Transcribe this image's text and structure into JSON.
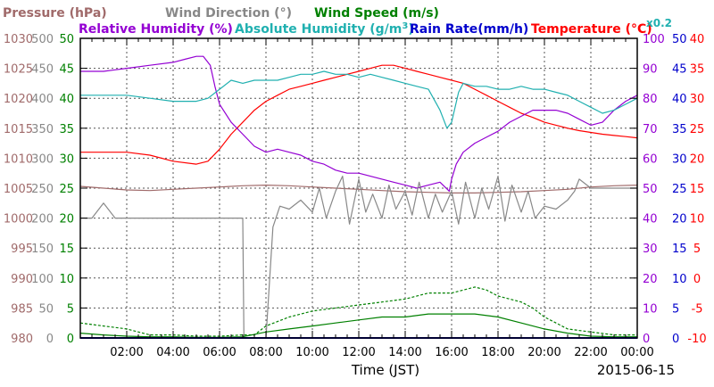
{
  "chart_data": {
    "type": "line",
    "date": "2015-06-15",
    "xlabel": "Time (JST)",
    "x_range_hours": [
      0,
      24
    ],
    "x_ticks": [
      "02:00",
      "04:00",
      "06:00",
      "08:00",
      "10:00",
      "12:00",
      "14:00",
      "16:00",
      "18:00",
      "20:00",
      "22:00",
      "00:00"
    ],
    "grid": true,
    "legend_rows": [
      [
        {
          "key": "pressure",
          "prefix": "Pressure (hPa)",
          "sup": "",
          "suffix": ""
        },
        {
          "key": "wind_direction",
          "prefix": "Wind Direction (°)",
          "sup": "",
          "suffix": ""
        },
        {
          "key": "wind_speed",
          "prefix": "Wind Speed (m/s)",
          "sup": "",
          "suffix": ""
        }
      ],
      [
        {
          "key": "relative_humidity",
          "prefix": "Relative Humidity (%)",
          "sup": "",
          "suffix": ""
        },
        {
          "key": "absolute_humidity",
          "prefix": "Absolute Humidity (g/m",
          "sup": "3",
          "suffix": ")"
        },
        {
          "key": "rain_rate",
          "prefix": "Rain Rate(mm/h)",
          "sup": "",
          "suffix": ""
        },
        {
          "key": "temperature",
          "prefix": "Temperature (°C)",
          "sup": "",
          "suffix": ""
        },
        {
          "key": "abs_scale",
          "prefix": "x0.2",
          "sup": "",
          "suffix": ""
        }
      ]
    ],
    "axes": [
      {
        "key": "pressure",
        "side": "left",
        "ticks": [
          980,
          985,
          990,
          995,
          1000,
          1005,
          1010,
          1015,
          1020,
          1025,
          1030
        ],
        "min": 980,
        "max": 1030
      },
      {
        "key": "wind_direction",
        "side": "left",
        "ticks": [
          0,
          50,
          100,
          150,
          200,
          250,
          300,
          350,
          400,
          450,
          500
        ],
        "min": 0,
        "max": 500
      },
      {
        "key": "wind_speed",
        "side": "left",
        "ticks": [
          0,
          5,
          10,
          15,
          20,
          25,
          30,
          35,
          40,
          45,
          50
        ],
        "min": 0,
        "max": 50
      },
      {
        "key": "relative_humidity",
        "side": "right",
        "ticks": [
          0,
          10,
          20,
          30,
          40,
          50,
          60,
          70,
          80,
          90,
          100
        ],
        "min": 0,
        "max": 100
      },
      {
        "key": "rain_rate",
        "side": "right",
        "ticks": [
          0,
          5,
          10,
          15,
          20,
          25,
          30,
          35,
          40,
          45,
          50
        ],
        "min": 0,
        "max": 50
      },
      {
        "key": "temperature",
        "side": "right",
        "ticks": [
          -10,
          -5,
          0,
          5,
          10,
          15,
          20,
          25,
          30,
          35,
          40
        ],
        "min": -10,
        "max": 40
      }
    ],
    "colors": {
      "pressure": "#a06a6a",
      "wind_direction": "#888888",
      "wind_speed": "#008000",
      "relative_humidity": "#9400d3",
      "absolute_humidity": "#20b0b0",
      "rain_rate": "#0000cc",
      "temperature": "#ff0000",
      "abs_scale": "#20b0b0"
    },
    "series": [
      {
        "key": "temperature",
        "axis": "temperature",
        "style": "solid",
        "x": [
          0,
          1,
          2,
          3,
          4,
          5,
          5.5,
          6,
          6.5,
          7,
          7.5,
          8,
          8.5,
          9,
          9.5,
          10,
          10.5,
          11,
          11.5,
          12,
          12.5,
          13,
          13.5,
          14,
          14.5,
          15,
          15.5,
          16,
          16.5,
          17,
          17.5,
          18,
          18.5,
          19,
          19.5,
          20,
          20.5,
          21,
          21.5,
          22,
          22.5,
          23,
          23.5,
          24
        ],
        "y": [
          21,
          21,
          21,
          20.5,
          19.5,
          19,
          19.5,
          21.5,
          24,
          26,
          28,
          29.5,
          30.5,
          31.5,
          32,
          32.5,
          33,
          33.5,
          34,
          34.5,
          35,
          35.5,
          35.5,
          35,
          34.5,
          34,
          33.5,
          33,
          32.5,
          31.5,
          30.5,
          29.5,
          28.5,
          27.5,
          26.8,
          26,
          25.5,
          25,
          24.6,
          24.3,
          24,
          23.8,
          23.6,
          23.4
        ]
      },
      {
        "key": "relative_humidity",
        "axis": "relative_humidity",
        "style": "solid",
        "x": [
          0,
          1,
          2,
          3,
          4,
          4.5,
          5,
          5.3,
          5.6,
          5.8,
          6,
          6.5,
          7,
          7.5,
          8,
          8.5,
          9,
          9.5,
          10,
          10.5,
          11,
          11.5,
          12,
          12.5,
          13,
          13.5,
          14,
          14.5,
          15,
          15.5,
          15.9,
          16,
          16.2,
          16.5,
          17,
          17.5,
          18,
          18.5,
          19,
          19.5,
          20,
          20.5,
          21,
          21.5,
          22,
          22.5,
          23,
          23.5,
          24
        ],
        "y": [
          89,
          89,
          90,
          91,
          92,
          93,
          94,
          94,
          91,
          84,
          78,
          72,
          68,
          64,
          62,
          63,
          62,
          61,
          59,
          58,
          56,
          55,
          55,
          54,
          53,
          52,
          51,
          50,
          51,
          52,
          49,
          53,
          58,
          62,
          65,
          67,
          69,
          72,
          74,
          76,
          76,
          76,
          75,
          73,
          71,
          72,
          76,
          79,
          81
        ]
      },
      {
        "key": "absolute_humidity",
        "axis": "relative_humidity",
        "style": "solid",
        "x": [
          0,
          1,
          2,
          3,
          4,
          4.5,
          5,
          5.5,
          6,
          6.5,
          7,
          7.5,
          8,
          8.5,
          9,
          9.5,
          10,
          10.5,
          11,
          11.5,
          12,
          12.5,
          13,
          13.5,
          14,
          14.5,
          15,
          15.5,
          15.8,
          16,
          16.3,
          16.5,
          17,
          17.5,
          18,
          18.5,
          19,
          19.5,
          20,
          20.5,
          21,
          21.5,
          22,
          22.5,
          23,
          23.5,
          24
        ],
        "y": [
          81,
          81,
          81,
          80,
          79,
          79,
          79,
          80,
          83,
          86,
          85,
          86,
          86,
          86,
          87,
          88,
          88,
          89,
          88,
          88,
          87,
          88,
          87,
          86,
          85,
          84,
          83,
          76,
          70,
          72,
          82,
          85,
          84,
          84,
          83,
          83,
          84,
          83,
          83,
          82,
          81,
          79,
          77,
          75,
          76,
          78,
          80
        ]
      },
      {
        "key": "pressure",
        "axis": "pressure",
        "style": "solid",
        "x": [
          0,
          1,
          2,
          3,
          4,
          5,
          6,
          7,
          8,
          9,
          10,
          11,
          12,
          13,
          14,
          15,
          16,
          17,
          18,
          19,
          20,
          21,
          22,
          23,
          24
        ],
        "y": [
          1005.3,
          1005,
          1004.7,
          1004.6,
          1004.8,
          1005,
          1005.2,
          1005.4,
          1005.5,
          1005.4,
          1005.2,
          1005,
          1004.8,
          1004.6,
          1004.4,
          1004.3,
          1004.2,
          1004.2,
          1004.3,
          1004.4,
          1004.6,
          1004.8,
          1005.2,
          1005.4,
          1005.5
        ]
      },
      {
        "key": "wind_direction",
        "axis": "wind_direction",
        "style": "solid",
        "x": [
          0,
          0.5,
          1,
          1.5,
          2,
          3,
          4,
          5,
          6,
          7,
          7.05,
          7.5,
          8,
          8.3,
          8.6,
          9,
          9.5,
          10,
          10.3,
          10.6,
          11,
          11.3,
          11.6,
          12,
          12.3,
          12.6,
          13,
          13.3,
          13.6,
          14,
          14.3,
          14.6,
          15,
          15.3,
          15.6,
          16,
          16.3,
          16.6,
          17,
          17.3,
          17.6,
          18,
          18.3,
          18.6,
          19,
          19.3,
          19.6,
          20,
          20.5,
          21,
          21.3,
          21.5,
          22,
          23,
          24
        ],
        "y": [
          200,
          200,
          225,
          200,
          200,
          200,
          200,
          200,
          200,
          200,
          0,
          0,
          0,
          185,
          220,
          215,
          230,
          210,
          250,
          200,
          245,
          270,
          190,
          265,
          210,
          240,
          200,
          255,
          215,
          245,
          205,
          260,
          200,
          240,
          210,
          245,
          190,
          260,
          200,
          250,
          215,
          270,
          195,
          255,
          210,
          245,
          200,
          220,
          215,
          230,
          245,
          265,
          250,
          250,
          250
        ]
      },
      {
        "key": "wind_speed_gust",
        "axis": "wind_speed",
        "style": "dashed",
        "x": [
          0,
          1,
          2,
          3,
          4,
          5,
          6,
          7,
          7.5,
          8,
          9,
          10,
          11,
          12,
          13,
          14,
          15,
          16,
          17,
          17.5,
          18,
          19,
          19.5,
          20,
          21,
          22,
          23,
          24
        ],
        "y": [
          2.5,
          2,
          1.5,
          0.5,
          0.5,
          0.3,
          0.3,
          0.5,
          0.5,
          2,
          3.5,
          4.5,
          5,
          5.5,
          6,
          6.5,
          7.5,
          7.5,
          8.5,
          8,
          7,
          6,
          5,
          3.5,
          1.5,
          1,
          0.5,
          0.5
        ]
      },
      {
        "key": "wind_speed",
        "axis": "wind_speed",
        "style": "solid",
        "x": [
          0,
          1,
          2,
          3,
          4,
          5,
          6,
          7,
          8,
          9,
          10,
          11,
          12,
          13,
          14,
          15,
          16,
          17,
          18,
          19,
          20,
          21,
          22,
          23,
          24
        ],
        "y": [
          0.8,
          0.5,
          0.3,
          0.2,
          0.2,
          0.1,
          0.1,
          0.2,
          1,
          1.5,
          2,
          2.5,
          3,
          3.5,
          3.5,
          4,
          4,
          4,
          3.5,
          2.5,
          1.5,
          0.8,
          0.3,
          0.2,
          0.2
        ]
      },
      {
        "key": "rain_rate",
        "axis": "rain_rate",
        "style": "solid",
        "x": [
          0,
          24
        ],
        "y": [
          0,
          0
        ]
      }
    ]
  }
}
